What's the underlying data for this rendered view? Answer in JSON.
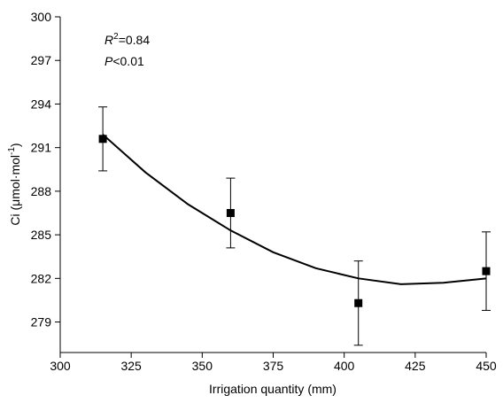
{
  "chart_data": {
    "type": "scatter",
    "x": [
      315,
      360,
      405,
      450
    ],
    "values": [
      291.6,
      286.5,
      280.3,
      282.5
    ],
    "errors": [
      2.2,
      2.4,
      2.9,
      2.7
    ],
    "color": "#000000",
    "fit": {
      "x": [
        315,
        330,
        345,
        360,
        375,
        390,
        405,
        420,
        435,
        450
      ],
      "y": [
        291.9,
        289.3,
        287.1,
        285.3,
        283.8,
        282.7,
        282.0,
        281.6,
        281.7,
        282.0
      ]
    },
    "xlabel": "Irrigation quantity (mm)",
    "ylabel": {
      "main": "Ci  (μmol·mol",
      "sup": "-1",
      "end": ")"
    },
    "annotations": {
      "r": "R",
      "r_sup": "2",
      "r_val": "=0.84",
      "p": "P",
      "p_val": "<0.01"
    },
    "xlim": [
      300,
      450
    ],
    "xticks": [
      300,
      325,
      350,
      375,
      400,
      425,
      450
    ],
    "ylim": [
      276.9,
      300
    ],
    "yticks": [
      279,
      282,
      285,
      288,
      291,
      294,
      297,
      300
    ]
  }
}
